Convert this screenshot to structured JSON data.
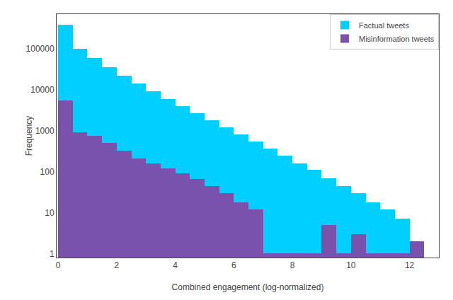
{
  "chart_data": {
    "type": "histogram",
    "xlabel": "Combined engagement (log-normalized)",
    "ylabel": "Frequency",
    "bins": [
      0,
      0.5,
      1,
      1.5,
      2,
      2.5,
      3,
      3.5,
      4,
      4.5,
      5,
      5.5,
      6,
      6.5,
      7,
      7.5,
      8,
      8.5,
      9,
      9.5,
      10,
      10.5,
      11,
      11.5,
      12,
      12.5
    ],
    "series": [
      {
        "name": "Factual tweets",
        "color": "#00CFFF",
        "values": [
          380000,
          100000,
          60000,
          35000,
          22000,
          14000,
          9000,
          6000,
          4000,
          2700,
          1800,
          1200,
          800,
          550,
          370,
          250,
          160,
          110,
          70,
          45,
          30,
          18,
          12,
          7,
          2
        ]
      },
      {
        "name": "Misinformation tweets",
        "color": "#7B52AB",
        "values": [
          5500,
          900,
          750,
          500,
          320,
          210,
          160,
          120,
          90,
          65,
          45,
          30,
          18,
          12,
          1,
          1,
          1,
          1,
          5,
          1,
          3,
          1,
          1,
          1,
          2
        ]
      }
    ],
    "xlim": [
      -0.05,
      13.0
    ],
    "xticks": [
      0,
      2,
      4,
      6,
      8,
      10,
      12
    ],
    "ylim": [
      0.8,
      700000
    ],
    "yticks": [
      1,
      10,
      100,
      1000,
      10000,
      100000
    ],
    "log": "y",
    "grid": false,
    "legend": "upper right"
  }
}
